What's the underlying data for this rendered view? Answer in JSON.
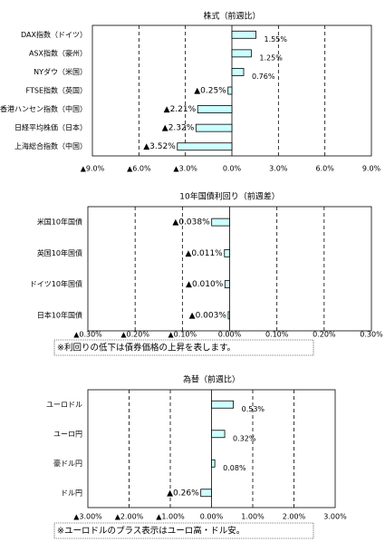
{
  "chart_data": [
    {
      "type": "hbar",
      "title": "株式（前週比）",
      "categories": [
        "DAX指数（ドイツ）",
        "ASX指数（豪州）",
        "NYダウ（米国）",
        "FTSE指数（英国）",
        "香港ハンセン指数（中国）",
        "日経平均株価（日本）",
        "上海総合指数（中国）"
      ],
      "values": [
        1.55,
        1.25,
        0.76,
        -0.25,
        -2.21,
        -2.32,
        -3.52
      ],
      "value_labels": [
        "1.55%",
        "1.25%",
        "0.76%",
        "▲0.25%",
        "▲2.21%",
        "▲2.32%",
        "▲3.52%"
      ],
      "xlim": [
        -9,
        9
      ],
      "xticks": [
        {
          "value": -9,
          "label": "▲9.0%"
        },
        {
          "value": -6,
          "label": "▲6.0%"
        },
        {
          "value": -3,
          "label": "▲3.0%"
        },
        {
          "value": 0,
          "label": "0.0%"
        },
        {
          "value": 3,
          "label": "3.0%"
        },
        {
          "value": 6,
          "label": "6.0%"
        },
        {
          "value": 9,
          "label": "9.0%"
        }
      ],
      "grid": true,
      "color": "#ccffff",
      "negative_color": "#ff0000"
    },
    {
      "type": "hbar",
      "title": "10年国債利回り（前週差）",
      "categories": [
        "米国10年国債",
        "英国10年国債",
        "ドイツ10年国債",
        "日本10年国債"
      ],
      "values": [
        -0.038,
        -0.011,
        -0.01,
        -0.003
      ],
      "value_labels": [
        "▲0.038%",
        "▲0.011%",
        "▲0.010%",
        "▲0.003%"
      ],
      "xlim": [
        -0.3,
        0.3
      ],
      "xticks": [
        {
          "value": -0.3,
          "label": "▲0.30%"
        },
        {
          "value": -0.2,
          "label": "▲0.20%"
        },
        {
          "value": -0.1,
          "label": "▲0.10%"
        },
        {
          "value": 0,
          "label": "0.00%"
        },
        {
          "value": 0.1,
          "label": "0.10%"
        },
        {
          "value": 0.2,
          "label": "0.20%"
        },
        {
          "value": 0.3,
          "label": "0.30%"
        }
      ],
      "grid": true,
      "color": "#ccffff",
      "negative_color": "#ff0000",
      "note": "※利回りの低下は債券価格の上昇を表します。"
    },
    {
      "type": "hbar",
      "title": "為替（前週比）",
      "categories": [
        "ユーロドル",
        "ユーロ円",
        "豪ドル円",
        "ドル円"
      ],
      "values": [
        0.53,
        0.32,
        0.08,
        -0.26
      ],
      "value_labels": [
        "0.53%",
        "0.32%",
        "0.08%",
        "▲0.26%"
      ],
      "xlim": [
        -3,
        3
      ],
      "xticks": [
        {
          "value": -3,
          "label": "▲3.00%"
        },
        {
          "value": -2,
          "label": "▲2.00%"
        },
        {
          "value": -1,
          "label": "▲1.00%"
        },
        {
          "value": 0,
          "label": "0.00%"
        },
        {
          "value": 1,
          "label": "1.00%"
        },
        {
          "value": 2,
          "label": "2.00%"
        },
        {
          "value": 3,
          "label": "3.00%"
        }
      ],
      "grid": true,
      "color": "#ccffff",
      "negative_color": "#ff0000",
      "note": "※ユーロドルのプラス表示はユーロ高・ドル安。"
    }
  ]
}
